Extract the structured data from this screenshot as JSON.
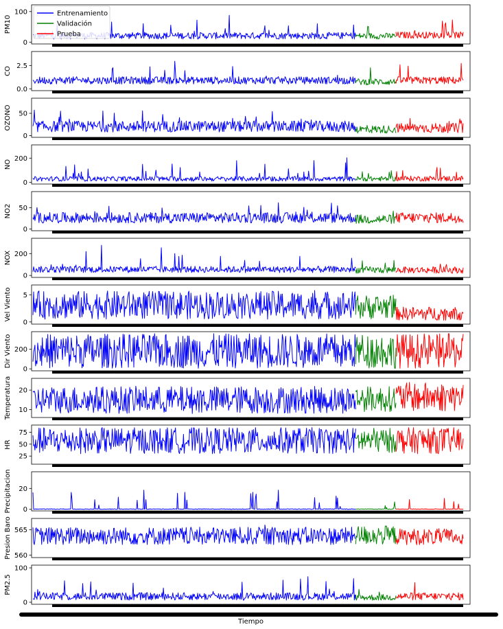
{
  "figure": {
    "xlabel": "Tiempo",
    "legend": {
      "placement": "top-left",
      "entries": [
        {
          "label": "Entrenamiento",
          "color": "#0000ff"
        },
        {
          "label": "Validación",
          "color": "#008000"
        },
        {
          "label": "Prueba",
          "color": "#ff0000"
        }
      ]
    }
  },
  "chart_data": [
    {
      "type": "line",
      "ylabel": "PM10",
      "yticks": [
        0,
        100
      ],
      "ylim": [
        -6,
        122
      ],
      "series": [
        {
          "name": "Entrenamiento",
          "color": "#0000ff",
          "profile": {
            "base": 10,
            "noise": 22,
            "spike_p": 0.04,
            "spike_amp": 60,
            "min": 0,
            "max": 118
          }
        },
        {
          "name": "Validación",
          "color": "#008000",
          "profile": {
            "base": 10,
            "noise": 20,
            "spike_p": 0.04,
            "spike_amp": 40,
            "min": 0,
            "max": 75
          }
        },
        {
          "name": "Prueba",
          "color": "#ff0000",
          "profile": {
            "base": 12,
            "noise": 22,
            "spike_p": 0.05,
            "spike_amp": 50,
            "min": 0,
            "max": 90
          }
        }
      ]
    },
    {
      "type": "line",
      "ylabel": "CO",
      "yticks": [
        0.0,
        2.5
      ],
      "ytick_labels": [
        "0.0",
        "2.5"
      ],
      "ylim": [
        -0.2,
        4.0
      ],
      "series": [
        {
          "name": "Entrenamiento",
          "color": "#0000ff",
          "profile": {
            "base": 0.5,
            "noise": 0.8,
            "spike_p": 0.05,
            "spike_amp": 1.8,
            "min": 0,
            "max": 3.4
          }
        },
        {
          "name": "Validación",
          "color": "#008000",
          "profile": {
            "base": 0.4,
            "noise": 0.7,
            "spike_p": 0.05,
            "spike_amp": 1.6,
            "min": 0,
            "max": 2.8
          }
        },
        {
          "name": "Prueba",
          "color": "#ff0000",
          "profile": {
            "base": 0.5,
            "noise": 0.8,
            "spike_p": 0.05,
            "spike_amp": 1.8,
            "min": 0,
            "max": 3.8
          }
        }
      ]
    },
    {
      "type": "line",
      "ylabel": "OZONO",
      "yticks": [
        0,
        50
      ],
      "ylim": [
        -4,
        84
      ],
      "series": [
        {
          "name": "Entrenamiento",
          "color": "#0000ff",
          "profile": {
            "base": 8,
            "noise": 25,
            "spike_p": 0.04,
            "spike_amp": 40,
            "min": 0,
            "max": 80
          }
        },
        {
          "name": "Validación",
          "color": "#008000",
          "profile": {
            "base": 5,
            "noise": 18,
            "spike_p": 0.03,
            "spike_amp": 20,
            "min": 0,
            "max": 42
          }
        },
        {
          "name": "Prueba",
          "color": "#ff0000",
          "profile": {
            "base": 6,
            "noise": 22,
            "spike_p": 0.03,
            "spike_amp": 20,
            "min": 0,
            "max": 45
          }
        }
      ]
    },
    {
      "type": "line",
      "ylabel": "NO",
      "yticks": [
        0,
        200
      ],
      "ylim": [
        -15,
        310
      ],
      "series": [
        {
          "name": "Entrenamiento",
          "color": "#0000ff",
          "profile": {
            "base": 8,
            "noise": 40,
            "spike_p": 0.04,
            "spike_amp": 160,
            "min": 0,
            "max": 300
          }
        },
        {
          "name": "Validación",
          "color": "#008000",
          "profile": {
            "base": 8,
            "noise": 40,
            "spike_p": 0.04,
            "spike_amp": 120,
            "min": 0,
            "max": 190
          }
        },
        {
          "name": "Prueba",
          "color": "#ff0000",
          "profile": {
            "base": 8,
            "noise": 45,
            "spike_p": 0.04,
            "spike_amp": 80,
            "min": 0,
            "max": 140
          }
        }
      ]
    },
    {
      "type": "line",
      "ylabel": "NO2",
      "yticks": [
        0,
        50
      ],
      "ylim": [
        -4,
        88
      ],
      "series": [
        {
          "name": "Entrenamiento",
          "color": "#0000ff",
          "profile": {
            "base": 14,
            "noise": 25,
            "spike_p": 0.03,
            "spike_amp": 30,
            "min": 0,
            "max": 85
          }
        },
        {
          "name": "Validación",
          "color": "#008000",
          "profile": {
            "base": 12,
            "noise": 22,
            "spike_p": 0.03,
            "spike_amp": 15,
            "min": 0,
            "max": 50
          }
        },
        {
          "name": "Prueba",
          "color": "#ff0000",
          "profile": {
            "base": 14,
            "noise": 25,
            "spike_p": 0.03,
            "spike_amp": 15,
            "min": 0,
            "max": 50
          }
        }
      ]
    },
    {
      "type": "line",
      "ylabel": "NOX",
      "yticks": [
        0,
        200
      ],
      "ylim": [
        -18,
        340
      ],
      "series": [
        {
          "name": "Entrenamiento",
          "color": "#0000ff",
          "profile": {
            "base": 25,
            "noise": 60,
            "spike_p": 0.04,
            "spike_amp": 200,
            "min": 0,
            "max": 330
          }
        },
        {
          "name": "Validación",
          "color": "#008000",
          "profile": {
            "base": 20,
            "noise": 60,
            "spike_p": 0.04,
            "spike_amp": 120,
            "min": 0,
            "max": 230
          }
        },
        {
          "name": "Prueba",
          "color": "#ff0000",
          "profile": {
            "base": 20,
            "noise": 60,
            "spike_p": 0.04,
            "spike_amp": 80,
            "min": 0,
            "max": 160
          }
        }
      ]
    },
    {
      "type": "line",
      "ylabel": "Vel Viento",
      "yticks": [
        0,
        5
      ],
      "ylim": [
        -0.4,
        6.8
      ],
      "series": [
        {
          "name": "Entrenamiento",
          "color": "#0000ff",
          "profile": {
            "base": 0.5,
            "noise": 5.2,
            "spike_p": 0.02,
            "spike_amp": 0.8,
            "min": 0.1,
            "max": 6.5
          }
        },
        {
          "name": "Validación",
          "color": "#008000",
          "profile": {
            "base": 0.5,
            "noise": 4.5,
            "spike_p": 0.02,
            "spike_amp": 0.6,
            "min": 0.1,
            "max": 5.3
          }
        },
        {
          "name": "Prueba",
          "color": "#ff0000",
          "profile": {
            "base": 0.3,
            "noise": 2.5,
            "spike_p": 0.02,
            "spike_amp": 1.5,
            "min": 0.1,
            "max": 4.9
          }
        }
      ]
    },
    {
      "type": "line",
      "ylabel": "Dir Viento",
      "yticks": [
        0,
        200
      ],
      "ylim": [
        -20,
        380
      ],
      "series": [
        {
          "name": "Entrenamiento",
          "color": "#0000ff",
          "profile": {
            "base": 5,
            "noise": 355,
            "spike_p": 0,
            "spike_amp": 0,
            "min": 0,
            "max": 360
          }
        },
        {
          "name": "Validación",
          "color": "#008000",
          "profile": {
            "base": 5,
            "noise": 355,
            "spike_p": 0,
            "spike_amp": 0,
            "min": 0,
            "max": 360
          }
        },
        {
          "name": "Prueba",
          "color": "#ff0000",
          "profile": {
            "base": 5,
            "noise": 355,
            "spike_p": 0,
            "spike_amp": 0,
            "min": 0,
            "max": 360
          }
        }
      ]
    },
    {
      "type": "line",
      "ylabel": "Temperatura",
      "yticks": [
        10,
        20
      ],
      "ylim": [
        6,
        26
      ],
      "series": [
        {
          "name": "Entrenamiento",
          "color": "#0000ff",
          "profile": {
            "base": 8,
            "noise": 14,
            "spike_p": 0,
            "spike_amp": 0,
            "min": 6.5,
            "max": 24
          }
        },
        {
          "name": "Validación",
          "color": "#008000",
          "profile": {
            "base": 9,
            "noise": 13,
            "spike_p": 0,
            "spike_amp": 0,
            "min": 8,
            "max": 23
          }
        },
        {
          "name": "Prueba",
          "color": "#ff0000",
          "profile": {
            "base": 9,
            "noise": 15,
            "spike_p": 0,
            "spike_amp": 0,
            "min": 8,
            "max": 25
          }
        }
      ]
    },
    {
      "type": "line",
      "ylabel": "HR",
      "yticks": [
        25,
        50,
        75
      ],
      "ylim": [
        8,
        90
      ],
      "series": [
        {
          "name": "Entrenamiento",
          "color": "#0000ff",
          "profile": {
            "base": 30,
            "noise": 55,
            "spike_p": 0,
            "spike_amp": 0,
            "min": 12,
            "max": 86
          }
        },
        {
          "name": "Validación",
          "color": "#008000",
          "profile": {
            "base": 32,
            "noise": 52,
            "spike_p": 0,
            "spike_amp": 0,
            "min": 20,
            "max": 84
          }
        },
        {
          "name": "Prueba",
          "color": "#ff0000",
          "profile": {
            "base": 30,
            "noise": 55,
            "spike_p": 0,
            "spike_amp": 0,
            "min": 28,
            "max": 86
          }
        }
      ]
    },
    {
      "type": "line",
      "ylabel": "Precipitacion",
      "yticks": [
        0,
        20
      ],
      "ylim": [
        -1.5,
        36
      ],
      "series": [
        {
          "name": "Entrenamiento",
          "color": "#0000ff",
          "profile": {
            "base": 0,
            "noise": 0.5,
            "spike_p": 0.06,
            "spike_amp": 18,
            "min": 0,
            "max": 34
          }
        },
        {
          "name": "Validación",
          "color": "#008000",
          "profile": {
            "base": 0,
            "noise": 0.5,
            "spike_p": 0.05,
            "spike_amp": 8,
            "min": 0,
            "max": 12
          }
        },
        {
          "name": "Prueba",
          "color": "#ff0000",
          "profile": {
            "base": 0,
            "noise": 0.5,
            "spike_p": 0.07,
            "spike_amp": 12,
            "min": 0,
            "max": 21
          }
        }
      ]
    },
    {
      "type": "line",
      "ylabel": "Presion Baro",
      "yticks": [
        560,
        565
      ],
      "ylim": [
        559.5,
        567.2
      ],
      "series": [
        {
          "name": "Entrenamiento",
          "color": "#0000ff",
          "profile": {
            "base": 562,
            "noise": 3.5,
            "spike_p": 0.01,
            "spike_amp": 1.5,
            "min": 560.5,
            "max": 567
          }
        },
        {
          "name": "Validación",
          "color": "#008000",
          "profile": {
            "base": 562,
            "noise": 3.8,
            "spike_p": 0.02,
            "spike_amp": 1.5,
            "min": 561,
            "max": 567
          }
        },
        {
          "name": "Prueba",
          "color": "#ff0000",
          "profile": {
            "base": 562,
            "noise": 3.2,
            "spike_p": 0.01,
            "spike_amp": 1.5,
            "min": 561.5,
            "max": 567
          }
        }
      ]
    },
    {
      "type": "line",
      "ylabel": "PM2.5",
      "yticks": [
        0,
        100
      ],
      "ylim": [
        -6,
        108
      ],
      "series": [
        {
          "name": "Entrenamiento",
          "color": "#0000ff",
          "profile": {
            "base": 6,
            "noise": 22,
            "spike_p": 0.04,
            "spike_amp": 50,
            "min": 0,
            "max": 105
          }
        },
        {
          "name": "Validación",
          "color": "#008000",
          "profile": {
            "base": 5,
            "noise": 18,
            "spike_p": 0.03,
            "spike_amp": 25,
            "min": 0,
            "max": 50
          }
        },
        {
          "name": "Prueba",
          "color": "#ff0000",
          "profile": {
            "base": 6,
            "noise": 22,
            "spike_p": 0.04,
            "spike_amp": 45,
            "min": 0,
            "max": 85
          }
        }
      ]
    }
  ]
}
